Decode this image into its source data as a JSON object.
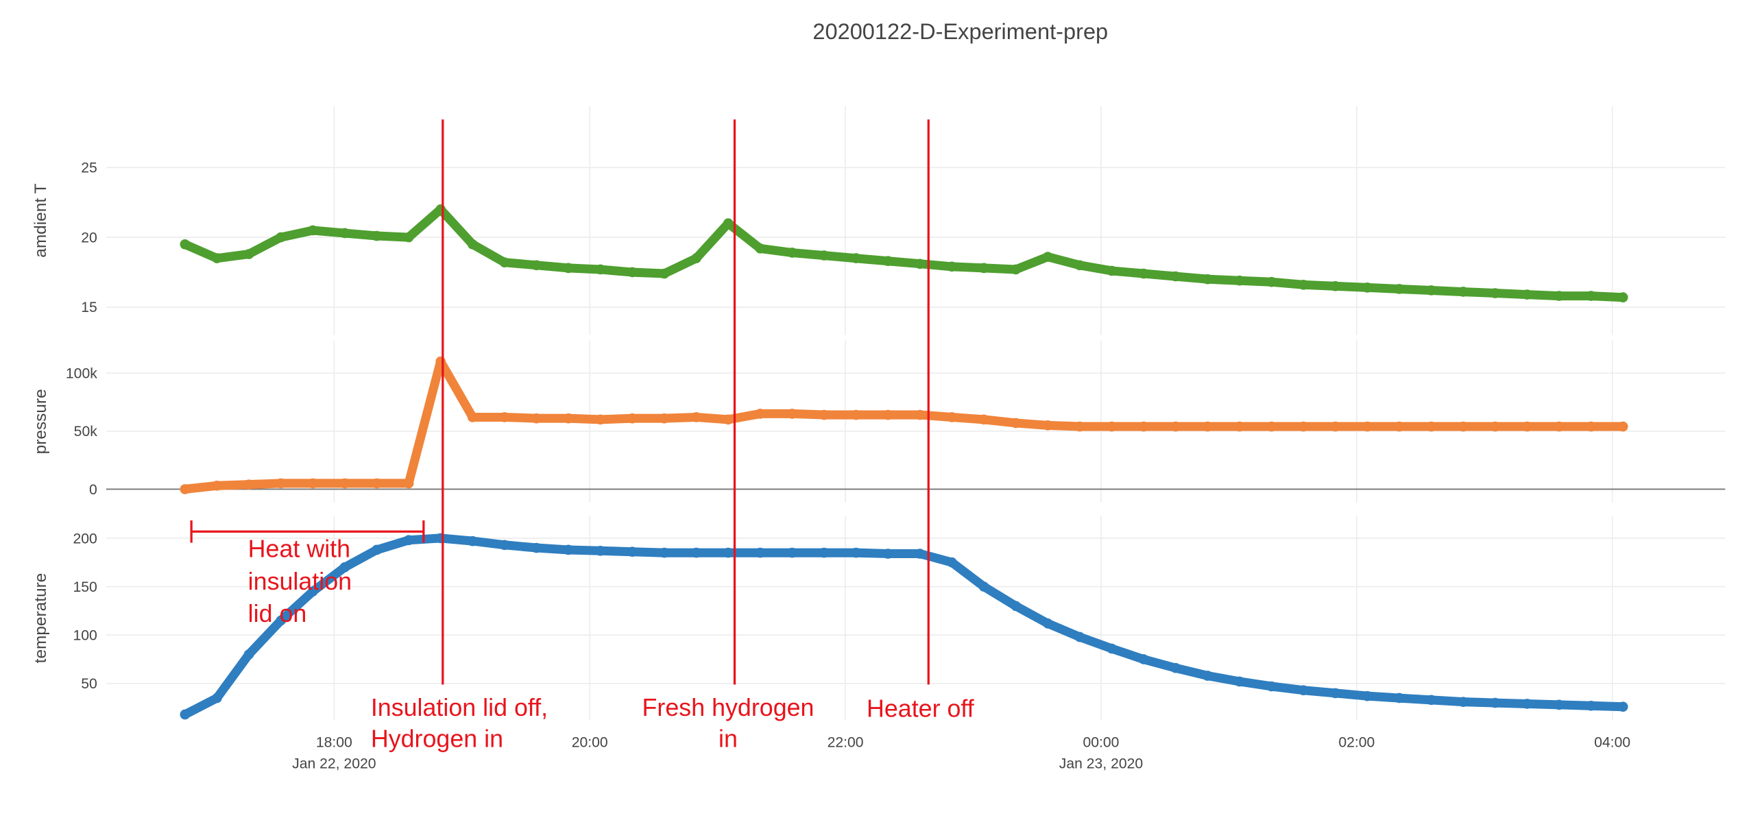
{
  "chart_data": {
    "type": "scatter",
    "title": "20200122-D-Experiment-prep",
    "x": [
      "2020-01-22 16:50",
      "2020-01-22 17:05",
      "2020-01-22 17:20",
      "2020-01-22 17:35",
      "2020-01-22 17:50",
      "2020-01-22 18:05",
      "2020-01-22 18:20",
      "2020-01-22 18:35",
      "2020-01-22 18:50",
      "2020-01-22 19:05",
      "2020-01-22 19:20",
      "2020-01-22 19:35",
      "2020-01-22 19:50",
      "2020-01-22 20:05",
      "2020-01-22 20:20",
      "2020-01-22 20:35",
      "2020-01-22 20:50",
      "2020-01-22 21:05",
      "2020-01-22 21:20",
      "2020-01-22 21:35",
      "2020-01-22 21:50",
      "2020-01-22 22:05",
      "2020-01-22 22:20",
      "2020-01-22 22:35",
      "2020-01-22 22:50",
      "2020-01-22 23:05",
      "2020-01-22 23:20",
      "2020-01-22 23:35",
      "2020-01-22 23:50",
      "2020-01-23 00:05",
      "2020-01-23 00:20",
      "2020-01-23 00:35",
      "2020-01-23 00:50",
      "2020-01-23 01:05",
      "2020-01-23 01:20",
      "2020-01-23 01:35",
      "2020-01-23 01:50",
      "2020-01-23 02:05",
      "2020-01-23 02:20",
      "2020-01-23 02:35",
      "2020-01-23 02:50",
      "2020-01-23 03:05",
      "2020-01-23 03:20",
      "2020-01-23 03:35",
      "2020-01-23 03:50",
      "2020-01-23 04:05"
    ],
    "xlim": [
      "2020-01-22 16:13",
      "2020-01-23 04:53"
    ],
    "xticks": [
      {
        "value": "2020-01-22 18:00",
        "label": "18:00",
        "sublabel": "Jan 22, 2020"
      },
      {
        "value": "2020-01-22 20:00",
        "label": "20:00"
      },
      {
        "value": "2020-01-22 22:00",
        "label": "22:00"
      },
      {
        "value": "2020-01-23 00:00",
        "label": "00:00",
        "sublabel": "Jan 23, 2020"
      },
      {
        "value": "2020-01-23 02:00",
        "label": "02:00"
      },
      {
        "value": "2020-01-23 04:00",
        "label": "04:00"
      }
    ],
    "grid": true,
    "series": [
      {
        "name": "amdient T",
        "color": "#4e9f2f",
        "ylim": [
          13,
          29.4
        ],
        "yticks": [
          15,
          20,
          25
        ],
        "values": [
          19.5,
          18.5,
          18.8,
          20,
          20.5,
          20.3,
          20.1,
          20.0,
          22,
          19.5,
          18.2,
          18.0,
          17.8,
          17.7,
          17.5,
          17.4,
          18.5,
          21,
          19.2,
          18.9,
          18.7,
          18.5,
          18.3,
          18.1,
          17.9,
          17.8,
          17.7,
          18.6,
          18.0,
          17.6,
          17.4,
          17.2,
          17.0,
          16.9,
          16.8,
          16.6,
          16.5,
          16.4,
          16.3,
          16.2,
          16.1,
          16.0,
          15.9,
          15.8,
          15.8,
          15.7
        ]
      },
      {
        "name": "pressure",
        "color": "#f0843a",
        "ylim": [
          -11500,
          128000
        ],
        "zeroline": true,
        "yticks": [
          0,
          {
            "value": 50000,
            "label": "50k"
          },
          {
            "value": 100000,
            "label": "100k"
          }
        ],
        "values": [
          0,
          3000,
          4000,
          5000,
          5000,
          5000,
          5000,
          5000,
          110000,
          62000,
          62000,
          61000,
          61000,
          60000,
          61000,
          61000,
          62000,
          60000,
          65000,
          65000,
          64000,
          64000,
          64000,
          64000,
          62000,
          60000,
          57000,
          55000,
          54000,
          54000,
          54000,
          54000,
          54000,
          54000,
          54000,
          54000,
          54000,
          54000,
          54000,
          54000,
          54000,
          54000,
          54000,
          54000,
          54000,
          54000
        ]
      },
      {
        "name": "temperature",
        "color": "#2f7ec0",
        "ylim": [
          12,
          223
        ],
        "yticks": [
          50,
          100,
          150,
          200
        ],
        "values": [
          18,
          35,
          80,
          115,
          145,
          170,
          188,
          198,
          200,
          197,
          193,
          190,
          188,
          187,
          186,
          185,
          185,
          185,
          185,
          185,
          185,
          185,
          184,
          184,
          175,
          150,
          130,
          112,
          98,
          86,
          75,
          66,
          58,
          52,
          47,
          43,
          40,
          37,
          35,
          33,
          31,
          30,
          29,
          28,
          27,
          26
        ]
      }
    ],
    "markers": {
      "color": "#e8141c",
      "lines": [
        "2020-01-22 18:51",
        "2020-01-22 21:08",
        "2020-01-22 22:39"
      ],
      "bracket": [
        "2020-01-22 16:53",
        "2020-01-22 18:42"
      ]
    },
    "annotations": [
      [
        "Heat with",
        "insulation",
        "lid on"
      ],
      [
        "Insulation lid off,",
        "Hydrogen in"
      ],
      [
        "Fresh hydrogen",
        "in"
      ],
      [
        "Heater off"
      ]
    ]
  }
}
